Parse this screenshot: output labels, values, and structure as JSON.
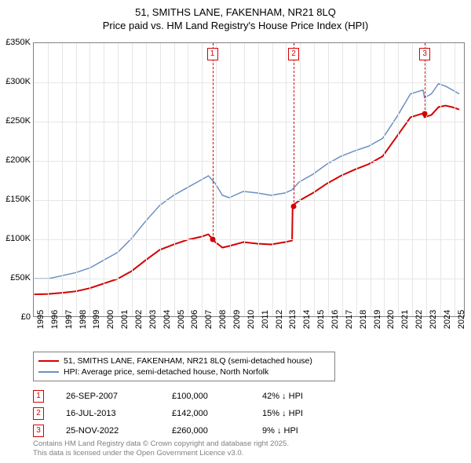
{
  "title_line1": "51, SMITHS LANE, FAKENHAM, NR21 8LQ",
  "title_line2": "Price paid vs. HM Land Registry's House Price Index (HPI)",
  "colors": {
    "price_paid": "#d40000",
    "hpi": "#6a8fc5",
    "grid": "#e6e6e6",
    "axis": "#808080",
    "footer": "#808080",
    "background": "#ffffff"
  },
  "chart": {
    "type": "line",
    "x_range": [
      1995,
      2025.8
    ],
    "y_range": [
      0,
      350000
    ],
    "y_ticks": [
      0,
      50000,
      100000,
      150000,
      200000,
      250000,
      300000,
      350000
    ],
    "y_tick_labels": [
      "£0",
      "£50K",
      "£100K",
      "£150K",
      "£200K",
      "£250K",
      "£300K",
      "£350K"
    ],
    "x_ticks": [
      1995,
      1996,
      1997,
      1998,
      1999,
      2000,
      2001,
      2002,
      2003,
      2004,
      2005,
      2006,
      2007,
      2008,
      2009,
      2010,
      2011,
      2012,
      2013,
      2014,
      2015,
      2016,
      2017,
      2018,
      2019,
      2020,
      2021,
      2022,
      2023,
      2024,
      2025
    ],
    "line_width_paid": 2,
    "line_width_hpi": 1.5,
    "series_price_paid": [
      [
        1995,
        28000
      ],
      [
        1996,
        28500
      ],
      [
        1997,
        30000
      ],
      [
        1998,
        32000
      ],
      [
        1999,
        36000
      ],
      [
        2000,
        42000
      ],
      [
        2001,
        48000
      ],
      [
        2002,
        58000
      ],
      [
        2003,
        72000
      ],
      [
        2004,
        85000
      ],
      [
        2005,
        92000
      ],
      [
        2006,
        98000
      ],
      [
        2007,
        102000
      ],
      [
        2007.5,
        105000
      ],
      [
        2007.74,
        100000
      ],
      [
        2008,
        95000
      ],
      [
        2008.5,
        88000
      ],
      [
        2009,
        90000
      ],
      [
        2010,
        95000
      ],
      [
        2011,
        93000
      ],
      [
        2012,
        92000
      ],
      [
        2013,
        95000
      ],
      [
        2013.5,
        97000
      ],
      [
        2013.54,
        142000
      ],
      [
        2014,
        148000
      ],
      [
        2015,
        158000
      ],
      [
        2016,
        170000
      ],
      [
        2017,
        180000
      ],
      [
        2018,
        188000
      ],
      [
        2019,
        195000
      ],
      [
        2020,
        205000
      ],
      [
        2021,
        230000
      ],
      [
        2022,
        255000
      ],
      [
        2022.9,
        260000
      ],
      [
        2023,
        255000
      ],
      [
        2023.5,
        258000
      ],
      [
        2024,
        268000
      ],
      [
        2024.5,
        270000
      ],
      [
        2025,
        268000
      ],
      [
        2025.5,
        265000
      ]
    ],
    "series_hpi": [
      [
        1995,
        48000
      ],
      [
        1996,
        48000
      ],
      [
        1997,
        52000
      ],
      [
        1998,
        56000
      ],
      [
        1999,
        62000
      ],
      [
        2000,
        72000
      ],
      [
        2001,
        82000
      ],
      [
        2002,
        100000
      ],
      [
        2003,
        122000
      ],
      [
        2004,
        142000
      ],
      [
        2005,
        155000
      ],
      [
        2006,
        165000
      ],
      [
        2007,
        175000
      ],
      [
        2007.5,
        180000
      ],
      [
        2008,
        170000
      ],
      [
        2008.5,
        155000
      ],
      [
        2009,
        152000
      ],
      [
        2010,
        160000
      ],
      [
        2011,
        158000
      ],
      [
        2012,
        155000
      ],
      [
        2013,
        158000
      ],
      [
        2013.5,
        162000
      ],
      [
        2014,
        172000
      ],
      [
        2015,
        182000
      ],
      [
        2016,
        195000
      ],
      [
        2017,
        205000
      ],
      [
        2018,
        212000
      ],
      [
        2019,
        218000
      ],
      [
        2020,
        228000
      ],
      [
        2021,
        255000
      ],
      [
        2022,
        285000
      ],
      [
        2022.9,
        290000
      ],
      [
        2023,
        280000
      ],
      [
        2023.5,
        285000
      ],
      [
        2024,
        298000
      ],
      [
        2024.5,
        295000
      ],
      [
        2025,
        290000
      ],
      [
        2025.5,
        285000
      ]
    ]
  },
  "sale_markers": [
    {
      "num": "1",
      "x_year": 2007.74,
      "y_value": 100000,
      "date": "26-SEP-2007",
      "price": "£100,000",
      "diff": "42% ↓ HPI"
    },
    {
      "num": "2",
      "x_year": 2013.54,
      "y_value": 142000,
      "date": "16-JUL-2013",
      "price": "£142,000",
      "diff": "15% ↓ HPI"
    },
    {
      "num": "3",
      "x_year": 2022.9,
      "y_value": 260000,
      "date": "25-NOV-2022",
      "price": "£260,000",
      "diff": "9% ↓ HPI"
    }
  ],
  "legend": {
    "row1": "51, SMITHS LANE, FAKENHAM, NR21 8LQ (semi-detached house)",
    "row2": "HPI: Average price, semi-detached house, North Norfolk"
  },
  "footer_line1": "Contains HM Land Registry data © Crown copyright and database right 2025.",
  "footer_line2": "This data is licensed under the Open Government Licence v3.0."
}
